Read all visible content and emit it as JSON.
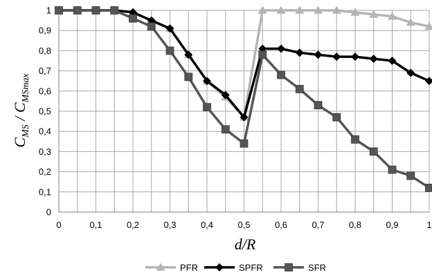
{
  "chart_data": {
    "type": "line",
    "title": "",
    "xlabel": "d/R",
    "ylabel_main": "C",
    "ylabel_sub1": "MS",
    "ylabel_sep": " / C",
    "ylabel_sub2": "MSmax",
    "xlim": [
      0,
      1
    ],
    "ylim": [
      0,
      1
    ],
    "grid": true,
    "legend_position": "bottom",
    "x": [
      0,
      0.05,
      0.1,
      0.15,
      0.2,
      0.25,
      0.3,
      0.35,
      0.4,
      0.45,
      0.5,
      0.55,
      0.6,
      0.65,
      0.7,
      0.75,
      0.8,
      0.85,
      0.9,
      0.95,
      1
    ],
    "x_ticks": [
      0,
      0.1,
      0.2,
      0.3,
      0.4,
      0.5,
      0.6,
      0.7,
      0.8,
      0.9,
      1
    ],
    "x_tick_labels": [
      "0",
      "0,1",
      "0,2",
      "0,3",
      "0,4",
      "0,5",
      "0,6",
      "0,7",
      "0,8",
      "0,9",
      "1"
    ],
    "y_ticks": [
      0,
      0.1,
      0.2,
      0.3,
      0.4,
      0.5,
      0.6,
      0.7,
      0.8,
      0.9,
      1
    ],
    "y_tick_labels": [
      "0",
      "0,1",
      "0,2",
      "0,3",
      "0,4",
      "0,5",
      "0,6",
      "0,7",
      "0,8",
      "0,9",
      "1"
    ],
    "series": [
      {
        "name": "PFR",
        "color": "#b4b4b4",
        "marker": "triangle",
        "values": [
          1,
          1,
          1,
          1,
          0.99,
          0.95,
          0.91,
          0.78,
          0.65,
          0.57,
          0.47,
          1,
          1,
          1,
          1,
          1,
          0.99,
          0.98,
          0.97,
          0.94,
          0.92
        ]
      },
      {
        "name": "SPFR",
        "color": "#000000",
        "marker": "diamond",
        "values": [
          1,
          1,
          1,
          1,
          0.99,
          0.95,
          0.91,
          0.78,
          0.65,
          0.58,
          0.47,
          0.81,
          0.81,
          0.79,
          0.78,
          0.77,
          0.77,
          0.76,
          0.75,
          0.69,
          0.65
        ]
      },
      {
        "name": "SFR",
        "color": "#555555",
        "marker": "square",
        "values": [
          1,
          1,
          1,
          1,
          0.96,
          0.92,
          0.8,
          0.67,
          0.52,
          0.41,
          0.34,
          0.78,
          0.68,
          0.61,
          0.53,
          0.47,
          0.36,
          0.3,
          0.21,
          0.18,
          0.12
        ]
      }
    ]
  }
}
